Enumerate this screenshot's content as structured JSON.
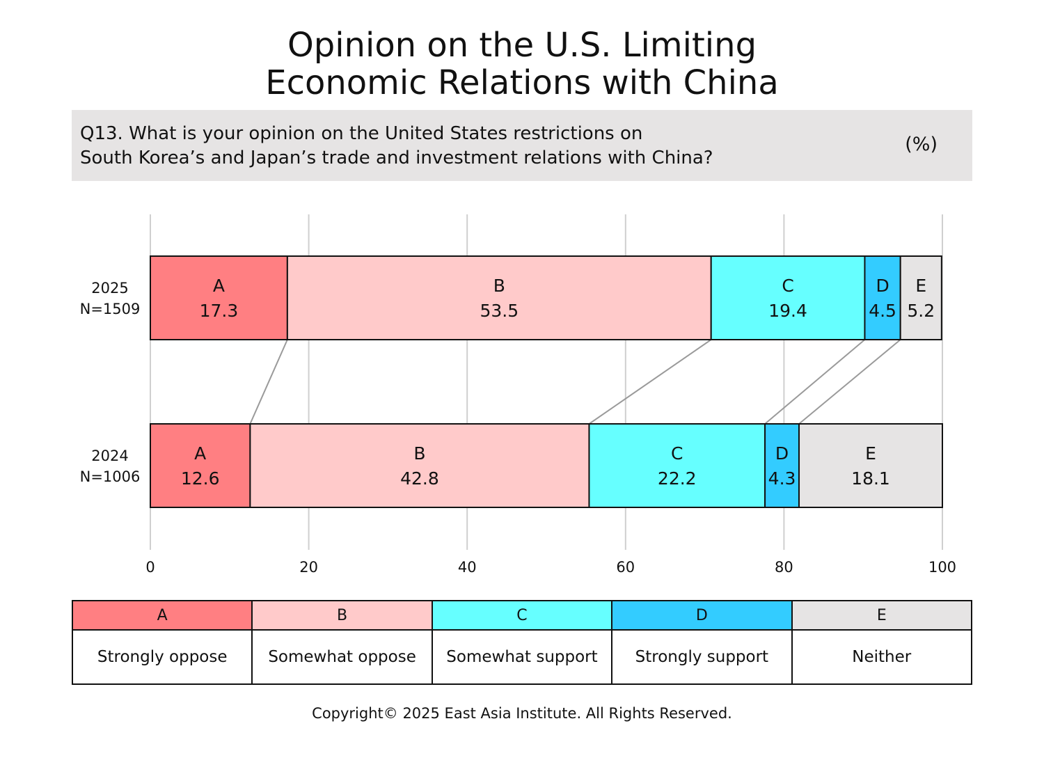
{
  "title_lines": [
    "Opinion on the U.S. Limiting",
    "Economic Relations with China"
  ],
  "question_lines": [
    "Q13. What is your opinion on the United States restrictions on",
    "South Korea’s and Japan’s trade and investment relations with China?"
  ],
  "unit": "(%)",
  "copyright": "Copyright© 2025 East Asia Institute. All Rights Reserved.",
  "chart_data": {
    "type": "bar",
    "orientation": "horizontal-stacked",
    "xlim": [
      0,
      100
    ],
    "xticks": [
      "0",
      "20",
      "40",
      "60",
      "80",
      "100"
    ],
    "grid": true,
    "categories": [
      {
        "year": "2025",
        "n": "N=1509"
      },
      {
        "year": "2024",
        "n": "N=1006"
      }
    ],
    "series": [
      {
        "key": "A",
        "color": "#ff7f82",
        "values": [
          17.3,
          12.6
        ]
      },
      {
        "key": "B",
        "color": "#ffcaca",
        "values": [
          53.5,
          42.8
        ]
      },
      {
        "key": "C",
        "color": "#66ffff",
        "values": [
          19.4,
          22.2
        ]
      },
      {
        "key": "D",
        "color": "#33ccff",
        "values": [
          4.5,
          4.3
        ]
      },
      {
        "key": "E",
        "color": "#e6e4e4",
        "values": [
          5.2,
          18.1
        ]
      }
    ],
    "connector_lines": true
  },
  "legend": [
    {
      "key": "A",
      "label": "Strongly oppose",
      "color": "#ff7f82"
    },
    {
      "key": "B",
      "label": "Somewhat oppose",
      "color": "#ffcaca"
    },
    {
      "key": "C",
      "label": "Somewhat support",
      "color": "#66ffff"
    },
    {
      "key": "D",
      "label": "Strongly support",
      "color": "#33ccff"
    },
    {
      "key": "E",
      "label": "Neither",
      "color": "#e6e4e4"
    }
  ]
}
